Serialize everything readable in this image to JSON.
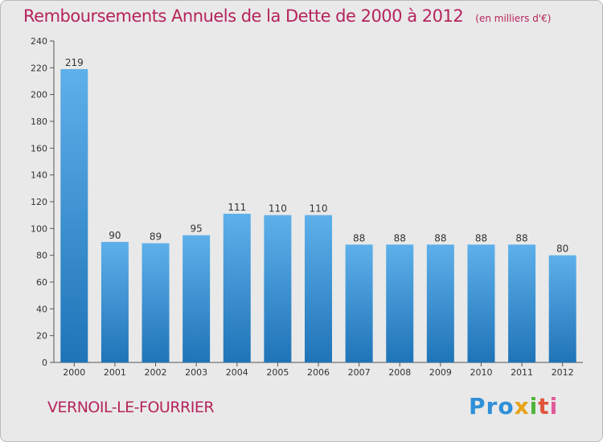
{
  "header": {
    "title": "Remboursements Annuels de la Dette de 2000 à 2012",
    "subtitle": "(en milliers d'€)"
  },
  "footer": {
    "commune": "VERNOIL-LE-FOURRIER",
    "logo": [
      "Pro",
      "x",
      "i",
      "t",
      "i"
    ]
  },
  "colors": {
    "accent": "#b5245b",
    "bar_top": "#5eb0ea",
    "bar_bottom": "#1f74b8",
    "background": "#e9e9e9"
  },
  "chart_data": {
    "type": "bar",
    "title": "Remboursements Annuels de la Dette de 2000 à 2012",
    "subtitle": "(en milliers d'€)",
    "xlabel": "",
    "ylabel": "",
    "categories": [
      "2000",
      "2001",
      "2002",
      "2003",
      "2004",
      "2005",
      "2006",
      "2007",
      "2008",
      "2009",
      "2010",
      "2011",
      "2012"
    ],
    "values": [
      219,
      90,
      89,
      95,
      111,
      110,
      110,
      88,
      88,
      88,
      88,
      88,
      80
    ],
    "ylim": [
      0,
      240
    ],
    "yticks": [
      0,
      20,
      40,
      60,
      80,
      100,
      120,
      140,
      160,
      180,
      200,
      220,
      240
    ],
    "grid": false,
    "legend": "none"
  }
}
